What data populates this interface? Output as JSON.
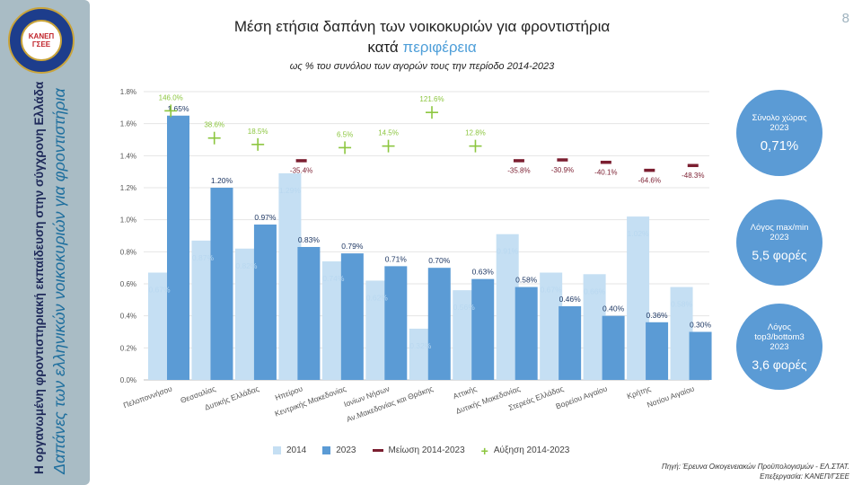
{
  "page_number": "8",
  "sidebar": {
    "logo_text_1": "ΚΑΝΕΠ",
    "logo_text_2": "ΓΣΕΕ",
    "vertical_title_1": "Η οργανωμένη φροντιστηριακή εκπαίδευση στην σύγχρονη Ελλάδα",
    "vertical_title_2": "Δαπάνες των ελληνικών νοικοκυριών για φροντιστήρια"
  },
  "title_line1": "Μέση ετήσια δαπάνη των νοικοκυριών για φροντιστήρια",
  "title_line2_prefix": "κατά ",
  "title_line2_highlight": "περιφέρεια",
  "subtitle": "ως % του συνόλου των αγορών τους την περίοδο 2014-2023",
  "legend": {
    "s2014": "2014",
    "s2023": "2023",
    "decrease": "Μείωση 2014-2023",
    "increase": "Αύξηση 2014-2023"
  },
  "bubbles": [
    {
      "label": "Σύνολο χώρας 2023",
      "value": "0,71%"
    },
    {
      "label": "Λόγος max/min 2023",
      "value": "5,5 φορές"
    },
    {
      "label": "Λόγος top3/bottom3 2023",
      "value": "3,6 φορές"
    }
  ],
  "source_line1": "Πηγή: Έρευνα Οικογενειακών Προϋπολογισμών - ΕΛ.ΣΤΑΤ.",
  "source_line2": "Επεξεργασία: ΚΑΝΕΠ/ΓΣΕΕ",
  "colors": {
    "bar_2014": "#c5dff3",
    "bar_2023": "#5b9bd5",
    "decrease": "#7b1e30",
    "increase": "#8cc63f",
    "label_2014": "#b9d8f0",
    "label_2023": "#1f3864"
  },
  "chart_data": {
    "type": "bar",
    "ylim": [
      0,
      1.8
    ],
    "yticks": [
      "0.0%",
      "0.2%",
      "0.4%",
      "0.6%",
      "0.8%",
      "1.0%",
      "1.2%",
      "1.4%",
      "1.6%",
      "1.8%"
    ],
    "categories": [
      "Πελοποννήσου",
      "Θεσσαλίας",
      "Δυτικής Ελλάδας",
      "Ηπείρου",
      "Κεντρικής Μακεδονίας",
      "Ιονίων Νήσων",
      "Αν.Μακεδονίας και Θράκης",
      "Αττικής",
      "Δυτικής Μακεδονίας",
      "Στερεάς Ελλάδας",
      "Βορείου Αιγαίου",
      "Κρήτης",
      "Νοτίου Αιγαίου"
    ],
    "series": [
      {
        "name": "2014",
        "values": [
          0.67,
          0.87,
          0.82,
          1.29,
          0.74,
          0.62,
          0.32,
          0.56,
          0.91,
          0.67,
          0.66,
          1.02,
          0.58
        ],
        "labels": [
          "0.67%",
          "0.87%",
          "0.82%",
          "1.29%",
          "0.74%",
          "0.62%",
          "0.32%",
          "0.56%",
          "0.91%",
          "0.67%",
          "0.66%",
          "1.02%",
          "0.58%"
        ]
      },
      {
        "name": "2023",
        "values": [
          1.65,
          1.2,
          0.97,
          0.83,
          0.79,
          0.71,
          0.7,
          0.63,
          0.58,
          0.46,
          0.4,
          0.36,
          0.3
        ],
        "labels": [
          "1.65%",
          "1.20%",
          "0.97%",
          "0.83%",
          "0.79%",
          "0.71%",
          "0.70%",
          "0.63%",
          "0.58%",
          "0.46%",
          "0.40%",
          "0.36%",
          "0.30%"
        ]
      }
    ],
    "change": [
      {
        "type": "increase",
        "marker_y": 1.68,
        "label": "146.0%"
      },
      {
        "type": "increase",
        "marker_y": 1.51,
        "label": "38.6%"
      },
      {
        "type": "increase",
        "marker_y": 1.47,
        "label": "18.5%"
      },
      {
        "type": "decrease",
        "marker_y": 1.37,
        "label": "-35.4%"
      },
      {
        "type": "increase",
        "marker_y": 1.45,
        "label": "6.5%"
      },
      {
        "type": "increase",
        "marker_y": 1.46,
        "label": "14.5%"
      },
      {
        "type": "increase",
        "marker_y": 1.67,
        "label": "121.6%"
      },
      {
        "type": "increase",
        "marker_y": 1.46,
        "label": "12.8%"
      },
      {
        "type": "decrease",
        "marker_y": 1.37,
        "label": "-35.8%"
      },
      {
        "type": "decrease",
        "marker_y": 1.375,
        "label": "-30.9%"
      },
      {
        "type": "decrease",
        "marker_y": 1.36,
        "label": "-40.1%"
      },
      {
        "type": "decrease",
        "marker_y": 1.31,
        "label": "-64.6%"
      },
      {
        "type": "decrease",
        "marker_y": 1.34,
        "label": "-48.3%"
      }
    ]
  }
}
